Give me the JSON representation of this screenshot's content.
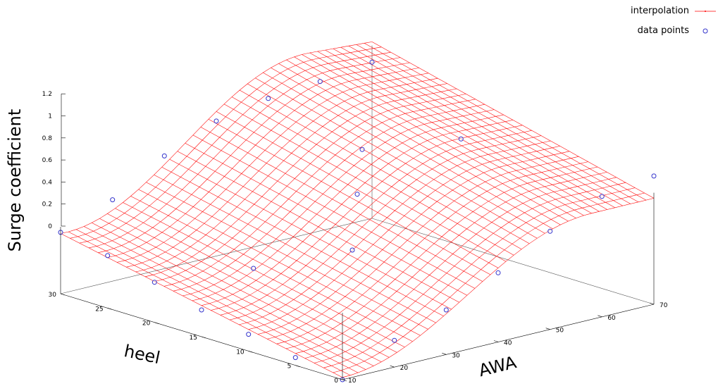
{
  "chart_data": {
    "type": "surface3d",
    "title": "",
    "xlabel": "AWA",
    "ylabel": "heel",
    "zlabel": "Surge coefficient",
    "xlim": [
      10,
      70
    ],
    "ylim": [
      0,
      30
    ],
    "zlim": [
      0,
      1.2
    ],
    "xticks": [
      "10",
      "20",
      "30",
      "40",
      "50",
      "60",
      "70"
    ],
    "yticks": [
      "0",
      "5",
      "10",
      "15",
      "20",
      "25",
      "30"
    ],
    "zticks": [
      "0",
      "0.2",
      "0.4",
      "0.6",
      "0.8",
      "1",
      "1.2"
    ],
    "legend_position": "top-right",
    "series": [
      {
        "name": "interpolation",
        "style": "surface-mesh",
        "color": "#ff0000"
      },
      {
        "name": "data points",
        "style": "points",
        "color": "#3333cc",
        "points": [
          {
            "x": 10,
            "y": 0,
            "z": 0.0
          },
          {
            "x": 10,
            "y": 5,
            "z": 0.07
          },
          {
            "x": 10,
            "y": 10,
            "z": 0.15
          },
          {
            "x": 10,
            "y": 15,
            "z": 0.24
          },
          {
            "x": 10,
            "y": 20,
            "z": 0.36
          },
          {
            "x": 10,
            "y": 25,
            "z": 0.47
          },
          {
            "x": 10,
            "y": 30,
            "z": 0.55
          },
          {
            "x": 20,
            "y": 0,
            "z": 0.24
          },
          {
            "x": 20,
            "y": 30,
            "z": 0.73
          },
          {
            "x": 30,
            "y": 0,
            "z": 0.4
          },
          {
            "x": 30,
            "y": 30,
            "z": 1.01
          },
          {
            "x": 40,
            "y": 0,
            "z": 0.62
          },
          {
            "x": 40,
            "y": 30,
            "z": 1.21
          },
          {
            "x": 50,
            "y": 0,
            "z": 0.88
          },
          {
            "x": 50,
            "y": 30,
            "z": 1.3
          },
          {
            "x": 60,
            "y": 0,
            "z": 1.08
          },
          {
            "x": 60,
            "y": 30,
            "z": 1.34
          },
          {
            "x": 70,
            "y": 0,
            "z": 1.15
          },
          {
            "x": 70,
            "y": 30,
            "z": 1.4
          },
          {
            "x": 20,
            "y": 15,
            "z": 0.5
          },
          {
            "x": 40,
            "y": 15,
            "z": 0.94
          },
          {
            "x": 60,
            "y": 15,
            "z": 1.21
          },
          {
            "x": 30,
            "y": 10,
            "z": 0.68
          },
          {
            "x": 50,
            "y": 20,
            "z": 1.1
          }
        ]
      }
    ]
  }
}
